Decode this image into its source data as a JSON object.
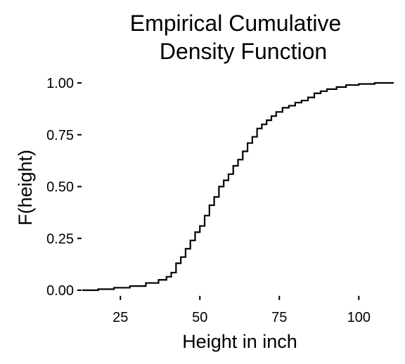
{
  "chart_data": {
    "type": "line",
    "step": true,
    "title_lines": [
      "Empirical Cumulative",
      "Density Function"
    ],
    "xlabel": "Height in inch",
    "ylabel": "F(height)",
    "xlim": [
      13,
      111
    ],
    "ylim": [
      0,
      1
    ],
    "x_ticks": [
      {
        "value": 25,
        "label": "25"
      },
      {
        "value": 50,
        "label": "50"
      },
      {
        "value": 75,
        "label": "75"
      },
      {
        "value": 100,
        "label": "100"
      }
    ],
    "y_ticks": [
      {
        "value": 0,
        "label": "0.00"
      },
      {
        "value": 0.25,
        "label": "0.25"
      },
      {
        "value": 0.5,
        "label": "0.50"
      },
      {
        "value": 0.75,
        "label": "0.75"
      },
      {
        "value": 1,
        "label": "1.00"
      }
    ],
    "grid": false,
    "series": [
      {
        "x": [
          13,
          18,
          23,
          28,
          33,
          37,
          39.5,
          41,
          42.5,
          44,
          45.5,
          47,
          48.5,
          50,
          51.5,
          53,
          54.5,
          56,
          57.5,
          59,
          60.5,
          62,
          63.5,
          65,
          66.5,
          68,
          69.5,
          71,
          72.5,
          74,
          76,
          78,
          80,
          82,
          84,
          86,
          88,
          90,
          93,
          96,
          100,
          105,
          111
        ],
        "y": [
          0,
          0.005,
          0.012,
          0.02,
          0.035,
          0.05,
          0.065,
          0.085,
          0.13,
          0.16,
          0.2,
          0.24,
          0.28,
          0.31,
          0.36,
          0.41,
          0.45,
          0.5,
          0.53,
          0.56,
          0.6,
          0.63,
          0.67,
          0.71,
          0.74,
          0.78,
          0.8,
          0.82,
          0.84,
          0.86,
          0.88,
          0.89,
          0.905,
          0.915,
          0.93,
          0.95,
          0.96,
          0.97,
          0.98,
          0.99,
          0.995,
          1.0,
          1.0
        ]
      }
    ]
  }
}
